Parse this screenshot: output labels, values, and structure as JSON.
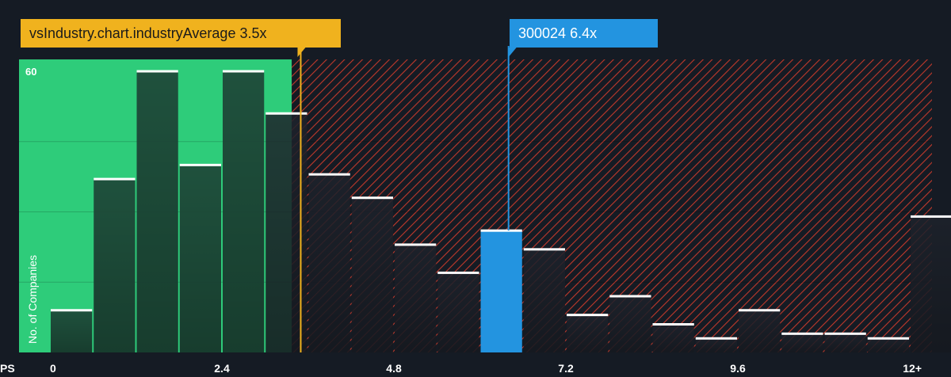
{
  "chart_data": {
    "type": "bar",
    "title": "",
    "xlabel": "PS",
    "ylabel": "No. of Companies",
    "ylim": [
      0,
      61
    ],
    "y_ticks": [
      {
        "value": 60,
        "label": "60"
      }
    ],
    "x_ticks": [
      {
        "value": 0,
        "label": "0"
      },
      {
        "value": 2.4,
        "label": "2.4"
      },
      {
        "value": 4.8,
        "label": "4.8"
      },
      {
        "value": 7.2,
        "label": "7.2"
      },
      {
        "value": 9.6,
        "label": "9.6"
      },
      {
        "value": 12,
        "label": "12+"
      }
    ],
    "bin_width": 0.6,
    "bins": [
      {
        "start": 0.0,
        "value": 9
      },
      {
        "start": 0.6,
        "value": 37
      },
      {
        "start": 1.2,
        "value": 60
      },
      {
        "start": 1.8,
        "value": 40
      },
      {
        "start": 2.4,
        "value": 60
      },
      {
        "start": 3.0,
        "value": 51
      },
      {
        "start": 3.6,
        "value": 38
      },
      {
        "start": 4.2,
        "value": 33
      },
      {
        "start": 4.8,
        "value": 23
      },
      {
        "start": 5.4,
        "value": 17
      },
      {
        "start": 6.0,
        "value": 26,
        "highlight": true
      },
      {
        "start": 6.6,
        "value": 22
      },
      {
        "start": 7.2,
        "value": 8
      },
      {
        "start": 7.8,
        "value": 12
      },
      {
        "start": 8.4,
        "value": 6
      },
      {
        "start": 9.0,
        "value": 3
      },
      {
        "start": 9.6,
        "value": 9
      },
      {
        "start": 10.2,
        "value": 4
      },
      {
        "start": 10.8,
        "value": 4
      },
      {
        "start": 11.4,
        "value": 3
      },
      {
        "start": 12.0,
        "value": 29
      }
    ],
    "industry_average": {
      "value": 3.5,
      "label": "vsIndustry.chart.industryAverage 3.5x"
    },
    "company": {
      "value": 6.4,
      "label": "300024 6.4x"
    },
    "colors": {
      "background": "#151b24",
      "fair_zone": "#2ecc7a",
      "overvalued_hatch": "#c0392b",
      "bar_in_fair": "#1f4a3a",
      "bar_outside": "#1d222b",
      "bar_top": "#ffffff",
      "company": "#2394e0",
      "industry_avg": "#f0b21e"
    }
  }
}
